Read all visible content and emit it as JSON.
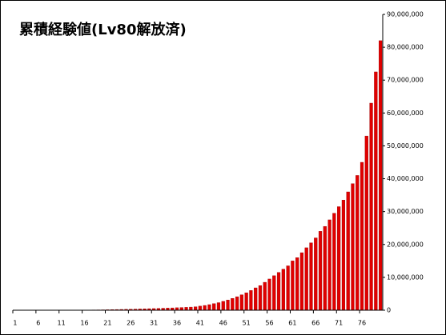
{
  "chart_data": {
    "type": "bar",
    "title": "累積経験値(Lv80解放済)",
    "categories": [
      "1",
      null,
      null,
      null,
      null,
      "6",
      null,
      null,
      null,
      null,
      "11",
      null,
      null,
      null,
      null,
      "16",
      null,
      null,
      null,
      null,
      "21",
      null,
      null,
      null,
      null,
      "26",
      null,
      null,
      null,
      null,
      "31",
      null,
      null,
      null,
      null,
      "36",
      null,
      null,
      null,
      null,
      "41",
      null,
      null,
      null,
      null,
      "46",
      null,
      null,
      null,
      null,
      "51",
      null,
      null,
      null,
      null,
      "56",
      null,
      null,
      null,
      null,
      "61",
      null,
      null,
      null,
      null,
      "66",
      null,
      null,
      null,
      null,
      "71",
      null,
      null,
      null,
      null,
      "76",
      null,
      null,
      null,
      null
    ],
    "values": [
      0,
      100,
      400,
      1000,
      2000,
      3500,
      5500,
      8000,
      11000,
      15000,
      20000,
      26000,
      33000,
      41000,
      50000,
      60000,
      72000,
      85000,
      100000,
      120000,
      150000,
      180000,
      210000,
      240000,
      270000,
      300000,
      340000,
      380000,
      420000,
      470000,
      500000,
      550000,
      600000,
      650000,
      700000,
      760000,
      820000,
      880000,
      950000,
      1050000,
      1250000,
      1450000,
      1700000,
      2000000,
      2300000,
      2700000,
      3100000,
      3600000,
      4100000,
      4700000,
      5300000,
      6000000,
      6800000,
      7500000,
      8500000,
      9500000,
      10500000,
      11500000,
      12500000,
      13500000,
      15000000,
      16000000,
      17500000,
      19000000,
      20500000,
      22000000,
      24000000,
      25500000,
      27500000,
      29500000,
      31500000,
      33500000,
      36000000,
      38500000,
      41000000,
      45000000,
      53000000,
      63000000,
      72500000,
      82000000
    ],
    "color": "#e00000",
    "ylim": [
      0,
      90000000
    ],
    "yticks": [
      {
        "value": 0,
        "label": "0"
      },
      {
        "value": 10000000,
        "label": "10,000,000"
      },
      {
        "value": 20000000,
        "label": "20,000,000"
      },
      {
        "value": 30000000,
        "label": "30,000,000"
      },
      {
        "value": 40000000,
        "label": "40,000,000"
      },
      {
        "value": 50000000,
        "label": "50,000,000"
      },
      {
        "value": 60000000,
        "label": "60,000,000"
      },
      {
        "value": 70000000,
        "label": "70,000,000"
      },
      {
        "value": 80000000,
        "label": "80,000,000"
      },
      {
        "value": 90000000,
        "label": "90,000,000"
      }
    ],
    "grid": false
  }
}
